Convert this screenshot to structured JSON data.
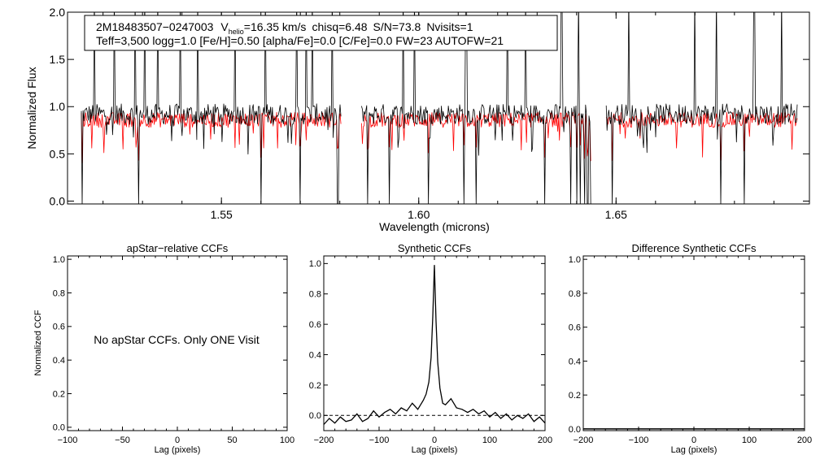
{
  "info_box": {
    "line1_id": "2M18483507−0247003",
    "line1_v": "V",
    "line1_v_sub": "helio",
    "line1_v_rest": "=16.35 km/s",
    "line1_chisq": "chisq=6.48",
    "line1_sn": "S/N=73.8",
    "line1_nvisits": "Nvisits=1",
    "line2": "Teff=3,500 logg=1.0 [Fe/H]=0.50 [alpha/Fe]=0.0 [C/Fe]=0.0 FW=23 AUTOFW=21"
  },
  "no_ccf_message": "No apStar CCFs.  Only ONE Visit",
  "colors": {
    "observed": "#000000",
    "model": "#ff0000",
    "axes": "#000000"
  },
  "chart_data": [
    {
      "id": "spectrum",
      "type": "line",
      "title": "",
      "xlabel": "Wavelength (microns)",
      "ylabel": "Normalized Flux",
      "xlim": [
        1.511,
        1.699
      ],
      "ylim": [
        -0.03,
        2.0
      ],
      "xticks": [
        1.55,
        1.6,
        1.65
      ],
      "xtick_labels": [
        "1.55",
        "1.60",
        "1.65"
      ],
      "yticks": [
        0.0,
        0.5,
        1.0,
        1.5,
        2.0
      ],
      "ytick_labels": [
        "0.0",
        "0.5",
        "1.0",
        "1.5",
        "2.0"
      ],
      "detector_ranges": [
        [
          1.5145,
          1.5805
        ],
        [
          1.5855,
          1.6437
        ],
        [
          1.6475,
          1.696
        ]
      ],
      "series": [
        {
          "name": "observed",
          "color": "#000000",
          "baseline": 0.92,
          "noise": 0.11
        },
        {
          "name": "model",
          "color": "#ff0000",
          "baseline": 0.86,
          "noise": 0.08
        }
      ],
      "emission_spikes": [
        1.5178,
        1.5228,
        1.5282,
        1.5305,
        1.5338,
        1.5395,
        1.544,
        1.5535,
        1.5612,
        1.569,
        1.5715,
        1.573,
        1.578,
        1.596,
        1.599,
        1.612,
        1.6225,
        1.627,
        1.6362,
        1.6405,
        1.6532,
        1.67,
        1.6755,
        1.685,
        1.692
      ],
      "absorption_dips": [
        1.5148,
        1.529,
        1.5535,
        1.56,
        1.57,
        1.5795,
        1.587,
        1.5925,
        1.6025,
        1.6115,
        1.6145,
        1.632,
        1.6385,
        1.64,
        1.641,
        1.642,
        1.6428,
        1.6435,
        1.649,
        1.6765,
        1.6825
      ]
    },
    {
      "id": "apstar-ccf",
      "type": "line",
      "title": "apStar−relative CCFs",
      "xlabel": "Lag (pixels)",
      "ylabel": "Normalized CCF",
      "xlim": [
        -100,
        100
      ],
      "ylim": [
        -0.02,
        1.02
      ],
      "xticks": [
        -100,
        -50,
        0,
        50,
        100
      ],
      "xtick_labels": [
        "−100",
        "−50",
        "0",
        "50",
        "100"
      ],
      "yticks": [
        0.0,
        0.2,
        0.4,
        0.6,
        0.8,
        1.0
      ],
      "ytick_labels": [
        "0.0",
        "0.2",
        "0.4",
        "0.6",
        "0.8",
        "1.0"
      ],
      "series": []
    },
    {
      "id": "synthetic-ccf",
      "type": "line",
      "title": "Synthetic CCFs",
      "xlabel": "Lag (pixels)",
      "ylabel": "",
      "xlim": [
        -200,
        200
      ],
      "ylim": [
        -0.1,
        1.05
      ],
      "xticks": [
        -200,
        -100,
        0,
        100,
        200
      ],
      "xtick_labels": [
        "−200",
        "−100",
        "0",
        "100",
        "200"
      ],
      "yticks": [
        0.0,
        0.2,
        0.4,
        0.6,
        0.8,
        1.0
      ],
      "ytick_labels": [
        "0.0",
        "0.2",
        "0.4",
        "0.6",
        "0.8",
        "1.0"
      ],
      "zero_line": 0.0,
      "series": [
        {
          "name": "ccf",
          "color": "#000000",
          "x": [
            -200,
            -190,
            -180,
            -170,
            -160,
            -150,
            -140,
            -130,
            -120,
            -110,
            -100,
            -90,
            -80,
            -70,
            -60,
            -50,
            -40,
            -30,
            -20,
            -15,
            -10,
            -6,
            -3,
            0,
            3,
            6,
            10,
            15,
            20,
            30,
            40,
            50,
            60,
            70,
            80,
            90,
            100,
            110,
            120,
            130,
            140,
            150,
            160,
            170,
            180,
            190,
            200
          ],
          "y": [
            -0.06,
            -0.02,
            -0.05,
            -0.01,
            -0.04,
            -0.03,
            0.01,
            -0.04,
            -0.02,
            0.03,
            -0.01,
            0.02,
            0.04,
            0.01,
            0.05,
            0.03,
            0.08,
            0.04,
            0.1,
            0.14,
            0.22,
            0.38,
            0.65,
            0.99,
            0.62,
            0.35,
            0.18,
            0.08,
            0.07,
            0.11,
            0.05,
            0.04,
            0.02,
            0.04,
            0.01,
            0.03,
            -0.01,
            0.02,
            -0.02,
            0.01,
            -0.03,
            0.0,
            -0.02,
            0.01,
            -0.04,
            -0.01,
            -0.05
          ]
        }
      ]
    },
    {
      "id": "difference-ccf",
      "type": "line",
      "title": "Difference Synthetic CCFs",
      "xlabel": "Lag (pixels)",
      "ylabel": "",
      "xlim": [
        -200,
        200
      ],
      "ylim": [
        -0.01,
        1.02
      ],
      "xticks": [
        -200,
        -100,
        0,
        100,
        200
      ],
      "xtick_labels": [
        "−200",
        "−100",
        "0",
        "100",
        "200"
      ],
      "yticks": [
        0.0,
        0.2,
        0.4,
        0.6,
        0.8,
        1.0
      ],
      "ytick_labels": [
        "0.0",
        "0.2",
        "0.4",
        "0.6",
        "0.8",
        "1.0"
      ],
      "series": [
        {
          "name": "difference",
          "color": "#000000",
          "x": [
            -200,
            200
          ],
          "y": [
            0.0,
            0.0
          ]
        }
      ]
    }
  ]
}
